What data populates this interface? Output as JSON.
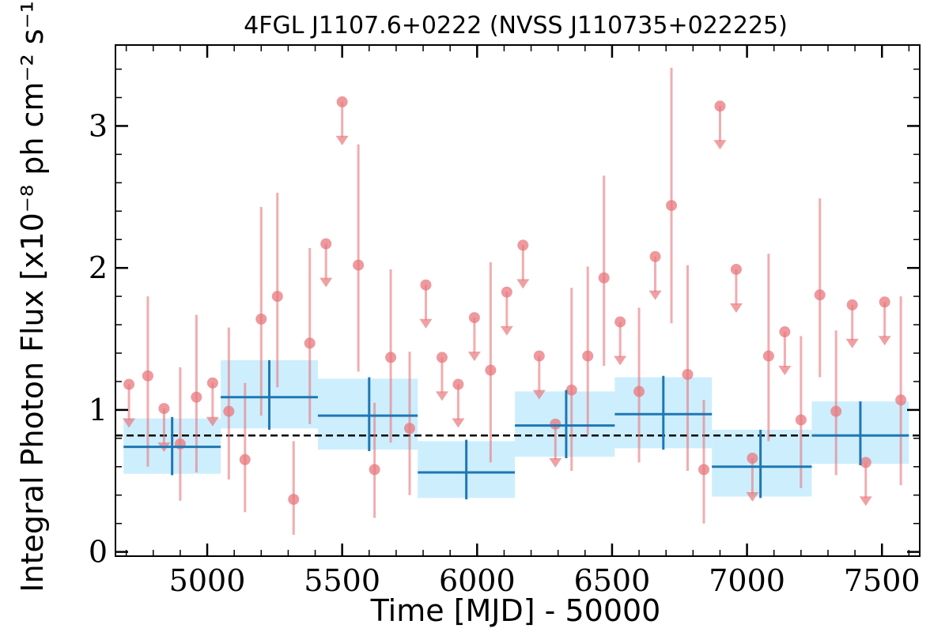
{
  "chart_data": {
    "type": "scatter",
    "title": "4FGL J1107.6+0222 (NVSS J110735+022225)",
    "xlabel": "Time [MJD] - 50000",
    "ylabel": "Integral Photon Flux [x10⁻⁸ ph cm⁻² s⁻¹]",
    "xlim": [
      4660,
      7640
    ],
    "ylim": [
      -0.03,
      3.57
    ],
    "xticks": [
      5000,
      5500,
      6000,
      6500,
      7000,
      7500
    ],
    "xtick_labels": [
      "5000",
      "5500",
      "6000",
      "6500",
      "7000",
      "7500"
    ],
    "yticks": [
      0,
      1,
      2,
      3
    ],
    "ytick_labels": [
      "0",
      "1",
      "2",
      "3"
    ],
    "grid": false,
    "mean_flux": 0.82,
    "colors": {
      "points": "#e8777c",
      "bins": "#1f77b4",
      "bin_band": "#cdeefd",
      "mean_line": "#000000"
    },
    "detections": [
      {
        "x": 4780,
        "y": 1.24,
        "lo": 0.6,
        "hi": 1.8
      },
      {
        "x": 4900,
        "y": 0.76,
        "lo": 0.36,
        "hi": 1.3
      },
      {
        "x": 4960,
        "y": 1.09,
        "lo": 0.56,
        "hi": 1.67
      },
      {
        "x": 5080,
        "y": 0.99,
        "lo": 0.51,
        "hi": 1.58
      },
      {
        "x": 5140,
        "y": 0.65,
        "lo": 0.28,
        "hi": 1.19
      },
      {
        "x": 5200,
        "y": 1.64,
        "lo": 0.96,
        "hi": 2.43
      },
      {
        "x": 5260,
        "y": 1.8,
        "lo": 1.16,
        "hi": 2.53
      },
      {
        "x": 5320,
        "y": 0.37,
        "lo": 0.12,
        "hi": 0.78
      },
      {
        "x": 5380,
        "y": 1.47,
        "lo": 0.9,
        "hi": 2.14
      },
      {
        "x": 5560,
        "y": 2.02,
        "lo": 1.27,
        "hi": 2.87
      },
      {
        "x": 5620,
        "y": 0.58,
        "lo": 0.24,
        "hi": 1.05
      },
      {
        "x": 5680,
        "y": 1.37,
        "lo": 0.77,
        "hi": 1.99
      },
      {
        "x": 5750,
        "y": 0.87,
        "lo": 0.4,
        "hi": 1.41
      },
      {
        "x": 6050,
        "y": 1.28,
        "lo": 0.63,
        "hi": 2.04
      },
      {
        "x": 6350,
        "y": 1.14,
        "lo": 0.57,
        "hi": 1.86
      },
      {
        "x": 6410,
        "y": 1.38,
        "lo": 0.82,
        "hi": 2.01
      },
      {
        "x": 6470,
        "y": 1.93,
        "lo": 1.31,
        "hi": 2.65
      },
      {
        "x": 6600,
        "y": 1.13,
        "lo": 0.63,
        "hi": 1.72
      },
      {
        "x": 6720,
        "y": 2.44,
        "lo": 1.61,
        "hi": 3.41
      },
      {
        "x": 6780,
        "y": 1.25,
        "lo": 0.57,
        "hi": 2.02
      },
      {
        "x": 6840,
        "y": 0.58,
        "lo": 0.2,
        "hi": 1.07
      },
      {
        "x": 7080,
        "y": 1.38,
        "lo": 0.78,
        "hi": 2.1
      },
      {
        "x": 7200,
        "y": 0.93,
        "lo": 0.45,
        "hi": 1.52
      },
      {
        "x": 7270,
        "y": 1.81,
        "lo": 1.23,
        "hi": 2.49
      },
      {
        "x": 7330,
        "y": 0.99,
        "lo": 0.54,
        "hi": 1.56
      },
      {
        "x": 7570,
        "y": 1.07,
        "lo": 0.47,
        "hi": 1.8
      }
    ],
    "upper_limits": [
      {
        "x": 4710,
        "y": 1.18
      },
      {
        "x": 4840,
        "y": 1.01
      },
      {
        "x": 5020,
        "y": 1.19
      },
      {
        "x": 5440,
        "y": 2.17
      },
      {
        "x": 5500,
        "y": 3.17
      },
      {
        "x": 5810,
        "y": 1.88
      },
      {
        "x": 5870,
        "y": 1.37
      },
      {
        "x": 5930,
        "y": 1.18
      },
      {
        "x": 5990,
        "y": 1.65
      },
      {
        "x": 6110,
        "y": 1.83
      },
      {
        "x": 6170,
        "y": 2.16
      },
      {
        "x": 6230,
        "y": 1.38
      },
      {
        "x": 6290,
        "y": 0.9
      },
      {
        "x": 6530,
        "y": 1.62
      },
      {
        "x": 6660,
        "y": 2.08
      },
      {
        "x": 6900,
        "y": 3.14
      },
      {
        "x": 6960,
        "y": 1.99
      },
      {
        "x": 7020,
        "y": 0.66
      },
      {
        "x": 7140,
        "y": 1.55
      },
      {
        "x": 7390,
        "y": 1.74
      },
      {
        "x": 7440,
        "y": 0.63
      },
      {
        "x": 7510,
        "y": 1.76
      }
    ],
    "bins": [
      {
        "x0": 4690,
        "x1": 5050,
        "x": 4870,
        "y": 0.74,
        "band_lo": 0.55,
        "band_hi": 0.94,
        "err_lo": 0.54,
        "err_hi": 0.95
      },
      {
        "x0": 5050,
        "x1": 5410,
        "x": 5230,
        "y": 1.09,
        "band_lo": 0.87,
        "band_hi": 1.35,
        "err_lo": 0.86,
        "err_hi": 1.35
      },
      {
        "x0": 5410,
        "x1": 5780,
        "x": 5600,
        "y": 0.96,
        "band_lo": 0.72,
        "band_hi": 1.22,
        "err_lo": 0.71,
        "err_hi": 1.23
      },
      {
        "x0": 5780,
        "x1": 6140,
        "x": 5960,
        "y": 0.56,
        "band_lo": 0.38,
        "band_hi": 0.78,
        "err_lo": 0.37,
        "err_hi": 0.79
      },
      {
        "x0": 6140,
        "x1": 6510,
        "x": 6330,
        "y": 0.89,
        "band_lo": 0.67,
        "band_hi": 1.13,
        "err_lo": 0.66,
        "err_hi": 1.14
      },
      {
        "x0": 6510,
        "x1": 6870,
        "x": 6690,
        "y": 0.97,
        "band_lo": 0.73,
        "band_hi": 1.23,
        "err_lo": 0.72,
        "err_hi": 1.24
      },
      {
        "x0": 6870,
        "x1": 7240,
        "x": 7050,
        "y": 0.6,
        "band_lo": 0.39,
        "band_hi": 0.86,
        "err_lo": 0.38,
        "err_hi": 0.86
      },
      {
        "x0": 7240,
        "x1": 7600,
        "x": 7420,
        "y": 0.82,
        "band_lo": 0.62,
        "band_hi": 1.06,
        "err_lo": 0.61,
        "err_hi": 1.06
      }
    ]
  }
}
